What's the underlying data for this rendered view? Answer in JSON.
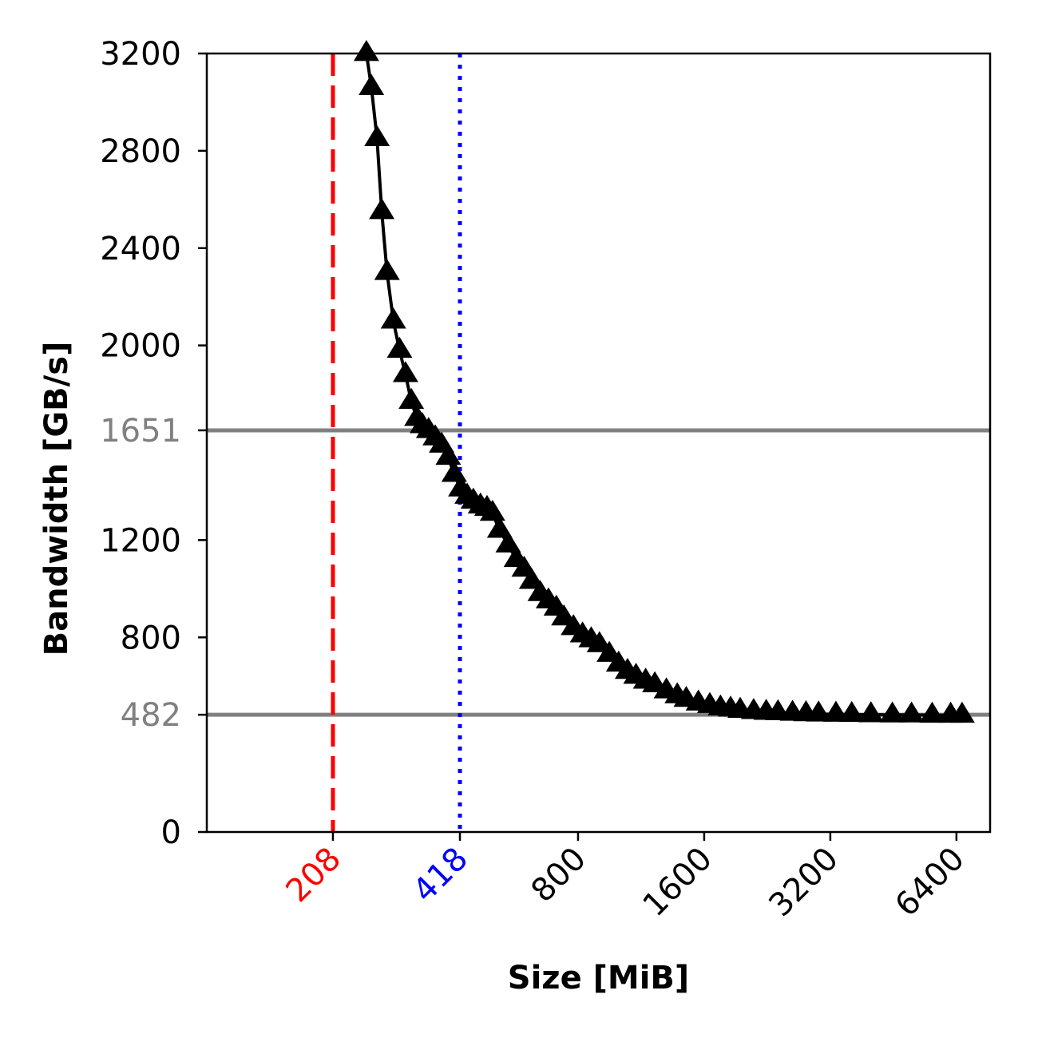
{
  "chart_data": {
    "type": "line",
    "title": "",
    "xlabel": "Size [MiB]",
    "ylabel": "Bandwidth [GB/s]",
    "x_scale": "log2",
    "xlim": [
      104,
      7700
    ],
    "ylim": [
      0,
      3200
    ],
    "grid": false,
    "legend": "none",
    "x_ticks": [
      {
        "value": 208,
        "label": "208",
        "color": "#ff0000"
      },
      {
        "value": 418,
        "label": "418",
        "color": "#0000ff"
      },
      {
        "value": 800,
        "label": "800",
        "color": "#000000"
      },
      {
        "value": 1600,
        "label": "1600",
        "color": "#000000"
      },
      {
        "value": 3200,
        "label": "3200",
        "color": "#000000"
      },
      {
        "value": 6400,
        "label": "6400",
        "color": "#000000"
      }
    ],
    "y_ticks": [
      {
        "value": 0,
        "label": "0",
        "color": "#000000"
      },
      {
        "value": 482,
        "label": "482",
        "color": "#808080"
      },
      {
        "value": 800,
        "label": "800",
        "color": "#000000"
      },
      {
        "value": 1200,
        "label": "1200",
        "color": "#000000"
      },
      {
        "value": 1651,
        "label": "1651",
        "color": "#808080"
      },
      {
        "value": 2000,
        "label": "2000",
        "color": "#000000"
      },
      {
        "value": 2400,
        "label": "2400",
        "color": "#000000"
      },
      {
        "value": 2800,
        "label": "2800",
        "color": "#000000"
      },
      {
        "value": 3200,
        "label": "3200",
        "color": "#000000"
      }
    ],
    "reference_lines": [
      {
        "orientation": "horizontal",
        "value": 1651,
        "color": "#808080",
        "style": "solid"
      },
      {
        "orientation": "horizontal",
        "value": 482,
        "color": "#808080",
        "style": "solid"
      },
      {
        "orientation": "vertical",
        "value": 208,
        "color": "#ff0000",
        "style": "dashed"
      },
      {
        "orientation": "vertical",
        "value": 418,
        "color": "#0000ff",
        "style": "dotted"
      }
    ],
    "series": [
      {
        "color": "#000000",
        "marker": "triangle-up",
        "x": [
          250,
          257,
          265,
          272,
          280,
          290,
          300,
          310,
          320,
          330,
          340,
          352,
          365,
          378,
          392,
          405,
          420,
          435,
          450,
          468,
          485,
          500,
          520,
          545,
          570,
          595,
          620,
          650,
          680,
          710,
          740,
          780,
          820,
          860,
          900,
          950,
          1000,
          1050,
          1100,
          1160,
          1220,
          1300,
          1380,
          1450,
          1550,
          1650,
          1750,
          1850,
          1950,
          2100,
          2250,
          2400,
          2600,
          2800,
          3000,
          3300,
          3600,
          4000,
          4500,
          5000,
          5600,
          6200,
          6600
        ],
        "y": [
          3200,
          3060,
          2850,
          2550,
          2300,
          2100,
          1980,
          1880,
          1770,
          1700,
          1670,
          1650,
          1620,
          1590,
          1540,
          1470,
          1410,
          1380,
          1360,
          1340,
          1330,
          1310,
          1240,
          1180,
          1120,
          1080,
          1030,
          980,
          950,
          920,
          880,
          840,
          810,
          790,
          770,
          730,
          690,
          660,
          640,
          620,
          605,
          580,
          560,
          545,
          530,
          520,
          510,
          505,
          500,
          495,
          492,
          490,
          488,
          486,
          485,
          484,
          483,
          482,
          481,
          481,
          480,
          480,
          480
        ]
      }
    ]
  }
}
